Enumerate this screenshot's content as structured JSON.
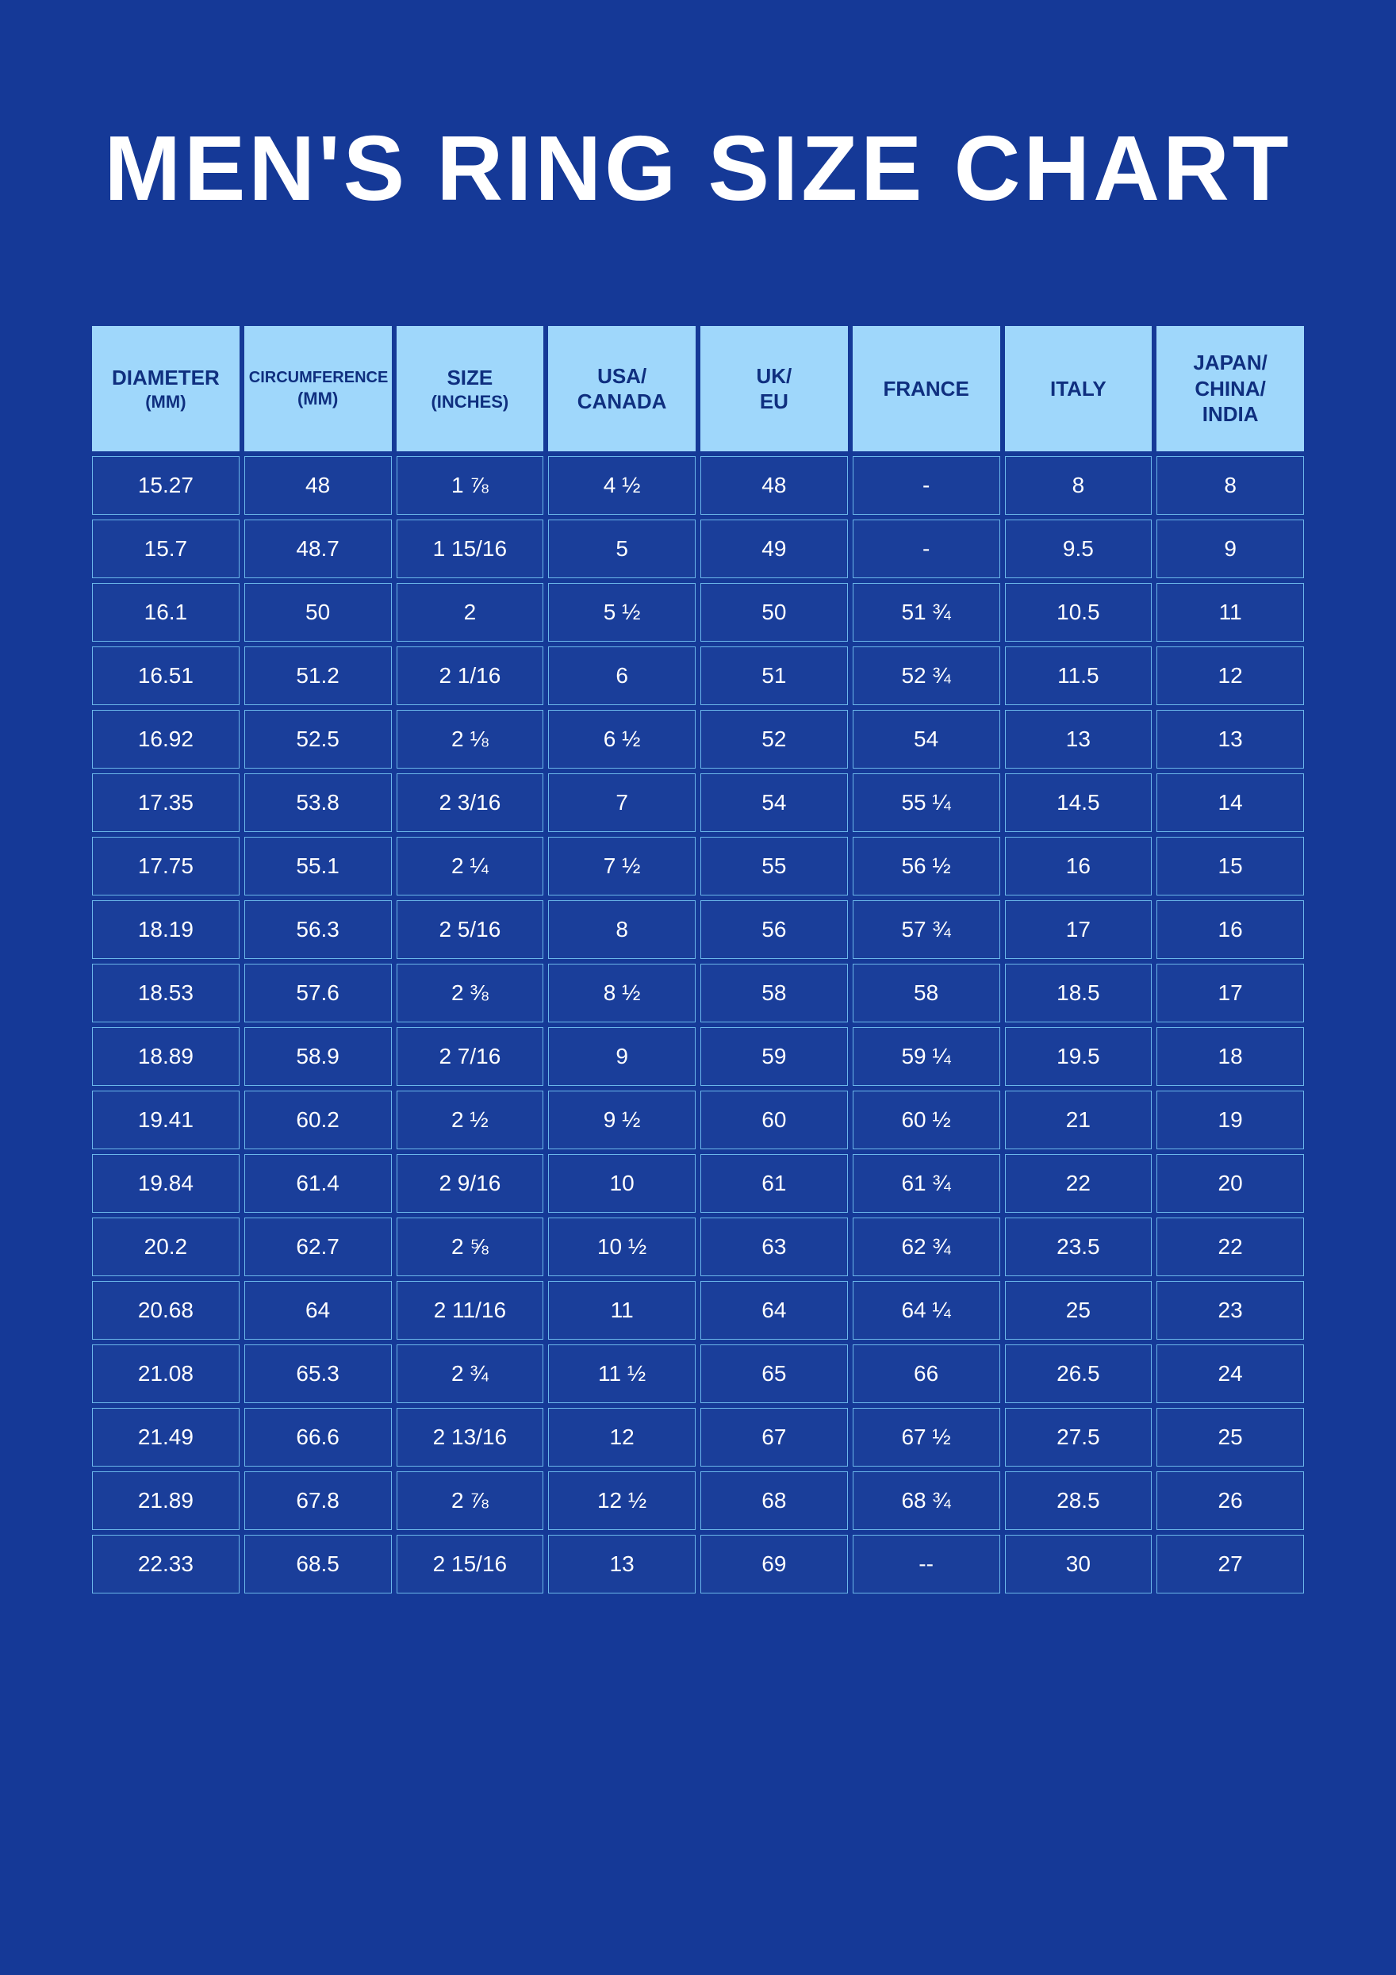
{
  "title": "MEN'S RING SIZE CHART",
  "colors": {
    "page_bg": "#153997",
    "header_bg": "#9fd7fb",
    "header_text": "#0f2f7f",
    "cell_bg": "#1a3e9a",
    "cell_text": "#ffffff",
    "cell_border": "#6bb7ea"
  },
  "table": {
    "columns": [
      "DIAMETER (MM)",
      "CIRCUMFERENCE (MM)",
      "SIZE (INCHES)",
      "USA/ CANADA",
      "UK/ EU",
      "FRANCE",
      "ITALY",
      "JAPAN/ CHINA/ INDIA"
    ],
    "rows": [
      [
        "15.27",
        "48",
        "1 ⅞",
        "4 ½",
        "48",
        "-",
        "8",
        "8"
      ],
      [
        "15.7",
        "48.7",
        "1 15/16",
        "5",
        "49",
        "-",
        "9.5",
        "9"
      ],
      [
        "16.1",
        "50",
        "2",
        "5 ½",
        "50",
        "51 ¾",
        "10.5",
        "11"
      ],
      [
        "16.51",
        "51.2",
        "2 1/16",
        "6",
        "51",
        "52 ¾",
        "11.5",
        "12"
      ],
      [
        "16.92",
        "52.5",
        "2 ⅛",
        "6 ½",
        "52",
        "54",
        "13",
        "13"
      ],
      [
        "17.35",
        "53.8",
        "2 3/16",
        "7",
        "54",
        "55 ¼",
        "14.5",
        "14"
      ],
      [
        "17.75",
        "55.1",
        "2 ¼",
        "7 ½",
        "55",
        "56 ½",
        "16",
        "15"
      ],
      [
        "18.19",
        "56.3",
        "2 5/16",
        "8",
        "56",
        "57 ¾",
        "17",
        "16"
      ],
      [
        "18.53",
        "57.6",
        "2 ⅜",
        "8 ½",
        "58",
        "58",
        "18.5",
        "17"
      ],
      [
        "18.89",
        "58.9",
        "2 7/16",
        "9",
        "59",
        "59 ¼",
        "19.5",
        "18"
      ],
      [
        "19.41",
        "60.2",
        "2 ½",
        "9 ½",
        "60",
        "60 ½",
        "21",
        "19"
      ],
      [
        "19.84",
        "61.4",
        "2 9/16",
        "10",
        "61",
        "61 ¾",
        "22",
        "20"
      ],
      [
        "20.2",
        "62.7",
        "2 ⅝",
        "10 ½",
        "63",
        "62 ¾",
        "23.5",
        "22"
      ],
      [
        "20.68",
        "64",
        "2 11/16",
        "11",
        "64",
        "64 ¼",
        "25",
        "23"
      ],
      [
        "21.08",
        "65.3",
        "2 ¾",
        "11 ½",
        "65",
        "66",
        "26.5",
        "24"
      ],
      [
        "21.49",
        "66.6",
        "2 13/16",
        "12",
        "67",
        "67 ½",
        "27.5",
        "25"
      ],
      [
        "21.89",
        "67.8",
        "2 ⅞",
        "12 ½",
        "68",
        "68 ¾",
        "28.5",
        "26"
      ],
      [
        "22.33",
        "68.5",
        "2 15/16",
        "13",
        "69",
        "--",
        "30",
        "27"
      ]
    ]
  }
}
